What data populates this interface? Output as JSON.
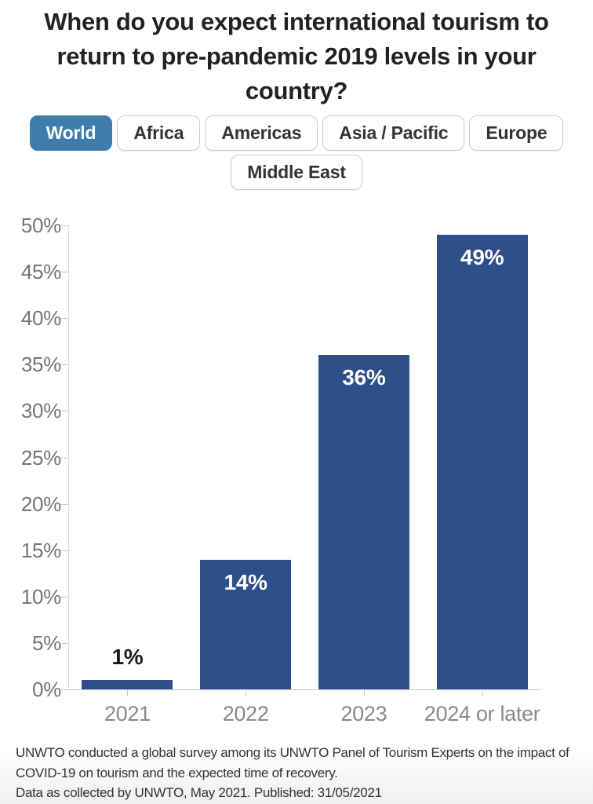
{
  "title": "When do you expect international tourism to\nreturn to pre-pandemic 2019 levels in your\ncountry?",
  "tabs": [
    {
      "label": "World",
      "selected": true,
      "row": 1
    },
    {
      "label": "Africa",
      "selected": false,
      "row": 1
    },
    {
      "label": "Americas",
      "selected": false,
      "row": 1
    },
    {
      "label": "Asia / Pacific",
      "selected": false,
      "row": 1
    },
    {
      "label": "Europe",
      "selected": false,
      "row": 1
    },
    {
      "label": "Middle East",
      "selected": false,
      "row": 2
    }
  ],
  "chart_data": {
    "type": "bar",
    "categories": [
      "2021",
      "2022",
      "2023",
      "2024 or later"
    ],
    "values": [
      1,
      14,
      36,
      49
    ],
    "value_labels": [
      "1%",
      "14%",
      "36%",
      "49%"
    ],
    "title": "",
    "xlabel": "",
    "ylabel": "",
    "ylim": [
      0,
      50
    ],
    "ytick_step": 5,
    "ytick_suffix": "%",
    "grid": false,
    "legend": false,
    "bar_color": "#2f4f8a",
    "value_label_color_inside": "#ffffff",
    "value_label_color_outside": "#1a1a1a",
    "axis_color": "#cccccc",
    "tick_label_color": "#757575"
  },
  "footer": {
    "line1": "UNWTO conducted a global survey among its UNWTO Panel of Tourism Experts on the impact of\nCOVID-19 on tourism and the expected time of recovery.",
    "line2": "Data as collected by UNWTO, May 2021. Published: 31/05/2021"
  },
  "colors": {
    "selected_tab": "#3e7dab",
    "bar": "#2f4f8a",
    "title_text": "#222222",
    "axis_text": "#757575",
    "footer_text": "#333333"
  }
}
